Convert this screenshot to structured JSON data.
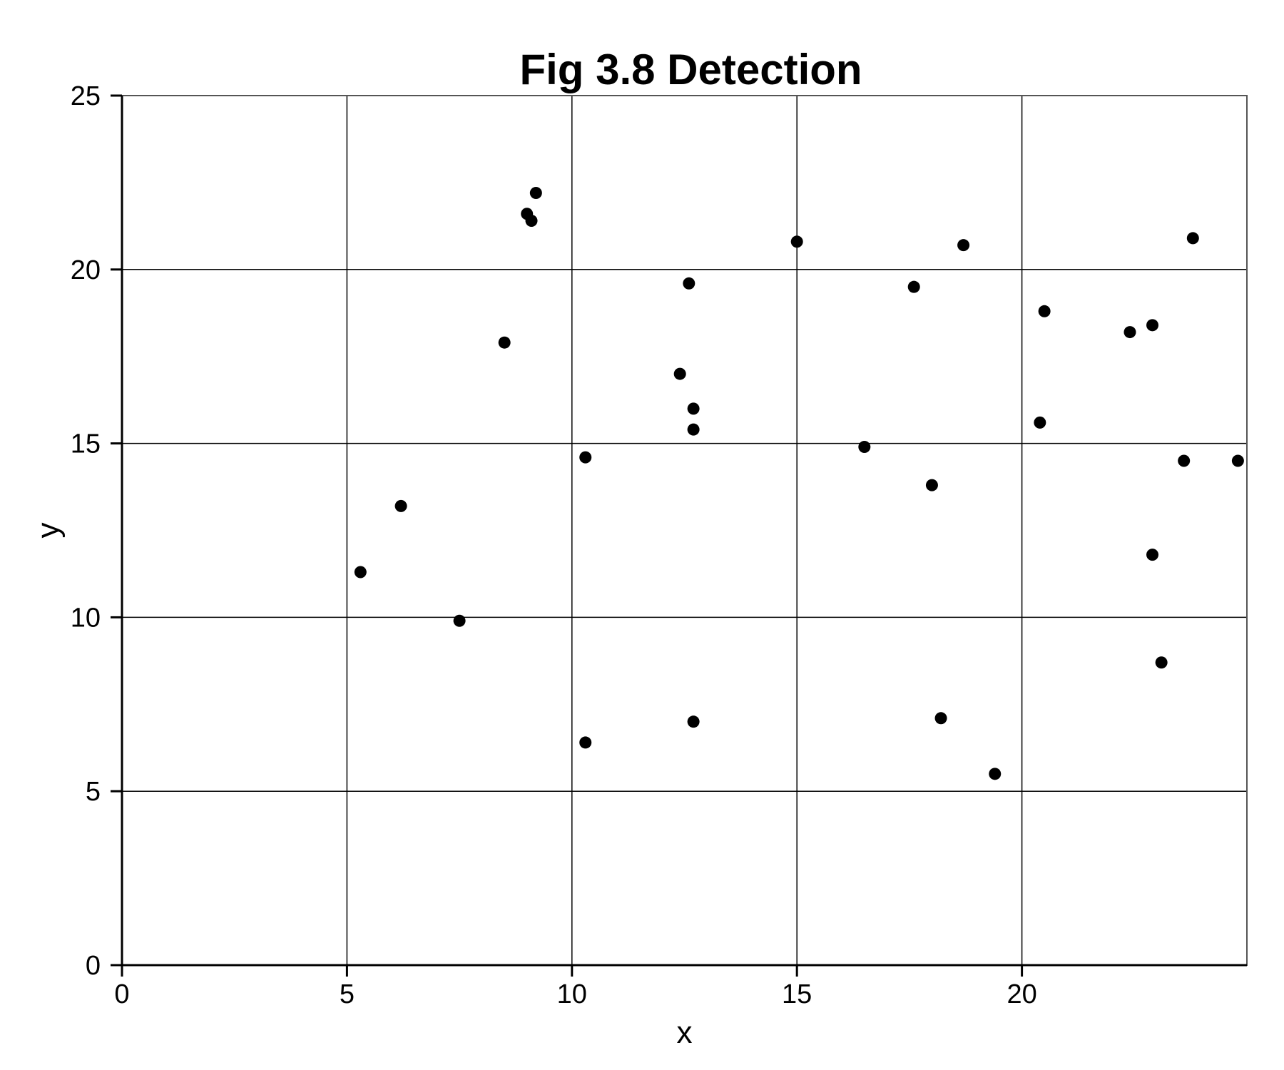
{
  "chart_data": {
    "type": "scatter",
    "title": "Fig 3.8 Detection",
    "xlabel": "x",
    "ylabel": "y",
    "xlim": [
      0,
      25
    ],
    "ylim": [
      0,
      25
    ],
    "x_ticks": [
      0,
      5,
      10,
      15,
      20
    ],
    "x_tick_labels": [
      "0",
      "5",
      "10",
      "15",
      "20"
    ],
    "y_ticks": [
      0,
      5,
      10,
      15,
      20,
      25
    ],
    "y_tick_labels": [
      "0",
      "5",
      "10",
      "15",
      "20",
      "25"
    ],
    "grid": true,
    "points": [
      {
        "x": 5.3,
        "y": 11.3
      },
      {
        "x": 6.2,
        "y": 13.2
      },
      {
        "x": 7.5,
        "y": 9.9
      },
      {
        "x": 8.5,
        "y": 17.9
      },
      {
        "x": 9.0,
        "y": 21.6
      },
      {
        "x": 9.1,
        "y": 21.4
      },
      {
        "x": 9.2,
        "y": 22.2
      },
      {
        "x": 10.3,
        "y": 14.6
      },
      {
        "x": 10.3,
        "y": 6.4
      },
      {
        "x": 12.4,
        "y": 17.0
      },
      {
        "x": 12.6,
        "y": 19.6
      },
      {
        "x": 12.7,
        "y": 16.0
      },
      {
        "x": 12.7,
        "y": 15.4
      },
      {
        "x": 12.7,
        "y": 7.0
      },
      {
        "x": 15.0,
        "y": 20.8
      },
      {
        "x": 16.5,
        "y": 14.9
      },
      {
        "x": 17.6,
        "y": 19.5
      },
      {
        "x": 18.0,
        "y": 13.8
      },
      {
        "x": 18.2,
        "y": 7.1
      },
      {
        "x": 18.7,
        "y": 20.7
      },
      {
        "x": 19.4,
        "y": 5.5
      },
      {
        "x": 20.4,
        "y": 15.6
      },
      {
        "x": 20.5,
        "y": 18.8
      },
      {
        "x": 22.4,
        "y": 18.2
      },
      {
        "x": 22.9,
        "y": 18.4
      },
      {
        "x": 22.9,
        "y": 11.8
      },
      {
        "x": 23.1,
        "y": 8.7
      },
      {
        "x": 23.6,
        "y": 14.5
      },
      {
        "x": 23.8,
        "y": 20.9
      },
      {
        "x": 24.8,
        "y": 14.5
      }
    ]
  }
}
